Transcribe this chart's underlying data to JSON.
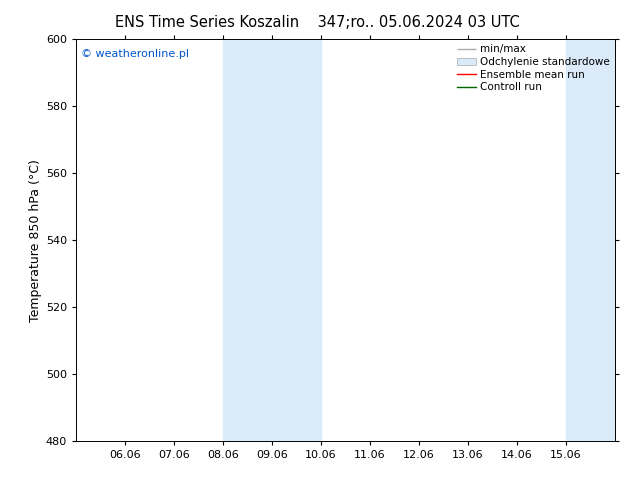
{
  "title_left": "ENS Time Series Koszalin",
  "title_right": "347;ro.. 05.06.2024 03 UTC",
  "ylabel": "Temperature 850 hPa (°C)",
  "ylim": [
    480,
    600
  ],
  "yticks": [
    480,
    500,
    520,
    540,
    560,
    580,
    600
  ],
  "xtick_days": [
    6,
    7,
    8,
    9,
    10,
    11,
    12,
    13,
    14,
    15
  ],
  "xtick_labels": [
    "06.06",
    "07.06",
    "08.06",
    "09.06",
    "10.06",
    "11.06",
    "12.06",
    "13.06",
    "14.06",
    "15.06"
  ],
  "xlim_day_start": 5,
  "xlim_day_end": 16,
  "shaded_bands": [
    {
      "x_start": 8,
      "x_end": 10
    },
    {
      "x_start": 15,
      "x_end": 16
    }
  ],
  "shade_color": "#daeaf8",
  "watermark_text": "© weatheronline.pl",
  "watermark_color": "#0055cc",
  "legend_entries": [
    {
      "label": "min/max",
      "color": "#aaaaaa"
    },
    {
      "label": "Odchylenie standardowe",
      "color": "#ccddee"
    },
    {
      "label": "Ensemble mean run",
      "color": "red"
    },
    {
      "label": "Controll run",
      "color": "green"
    }
  ],
  "bg_color": "#ffffff",
  "title_fontsize": 10.5,
  "ylabel_fontsize": 9,
  "tick_fontsize": 8,
  "legend_fontsize": 7.5,
  "watermark_fontsize": 8
}
